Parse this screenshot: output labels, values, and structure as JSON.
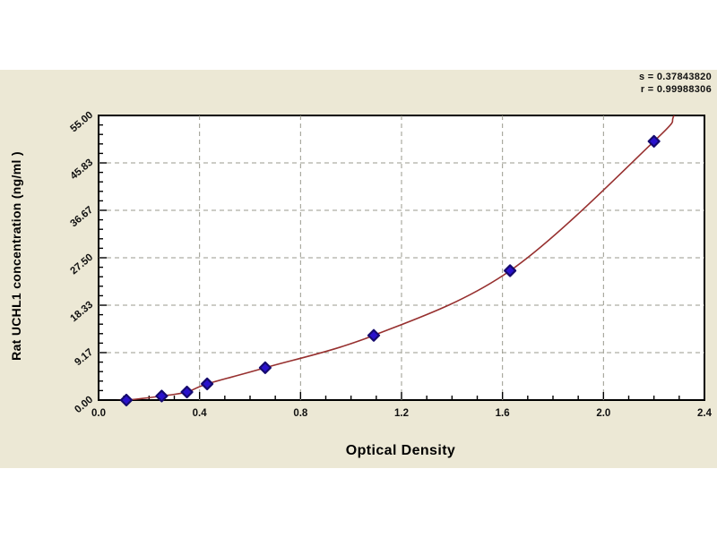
{
  "stats": {
    "line1": "s = 0.37843820",
    "line2": "r = 0.99988306"
  },
  "axes": {
    "x_title": "Optical Density",
    "y_title": "Rat UCHL1 concentration (ng/ml )",
    "x_ticks": [
      {
        "value": 0.0,
        "label": "0.0"
      },
      {
        "value": 0.4,
        "label": "0.4"
      },
      {
        "value": 0.8,
        "label": "0.8"
      },
      {
        "value": 1.2,
        "label": "1.2"
      },
      {
        "value": 1.6,
        "label": "1.6"
      },
      {
        "value": 2.0,
        "label": "2.0"
      },
      {
        "value": 2.4,
        "label": "2.4"
      }
    ],
    "y_ticks": [
      {
        "value": 0.0,
        "label": "0.00"
      },
      {
        "value": 9.17,
        "label": "9.17"
      },
      {
        "value": 18.33,
        "label": "18.33"
      },
      {
        "value": 27.5,
        "label": "27.50"
      },
      {
        "value": 36.67,
        "label": "36.67"
      },
      {
        "value": 45.83,
        "label": "45.83"
      },
      {
        "value": 55.0,
        "label": "55.00"
      }
    ]
  },
  "colors": {
    "page_background": "#ffffff",
    "panel_background": "#ECE8D5",
    "plot_background": "#ffffff",
    "frame": "#000000",
    "grid": "#9A9A8E",
    "curve": "#97302F",
    "marker_fill": "#2A12CC",
    "marker_edge": "#150A6E",
    "text": "#111111"
  },
  "chart_data": {
    "type": "scatter",
    "title": "",
    "xlabel": "Optical Density",
    "ylabel": "Rat UCHL1 concentration (ng/ml )",
    "xlim": [
      0,
      2.4
    ],
    "ylim": [
      0,
      55
    ],
    "x_minor_step": 0.1,
    "y_minor_divisions": 5,
    "grid": "dashed-major",
    "legend": "none",
    "series": [
      {
        "name": "standard-points",
        "marker": "diamond",
        "x": [
          0.11,
          0.25,
          0.35,
          0.43,
          0.66,
          1.09,
          1.63,
          2.2
        ],
        "y": [
          0,
          0.78,
          1.56,
          3.12,
          6.25,
          12.5,
          25,
          50
        ]
      }
    ],
    "fit_curve": {
      "name": "regression-curve",
      "extend_start": [
        [
          0.0,
          -0.3
        ]
      ],
      "extend_end": [
        [
          2.28,
          55
        ],
        [
          2.33,
          61
        ]
      ]
    },
    "fit_stats": {
      "s": "0.37843820",
      "r": "0.99988306"
    }
  }
}
